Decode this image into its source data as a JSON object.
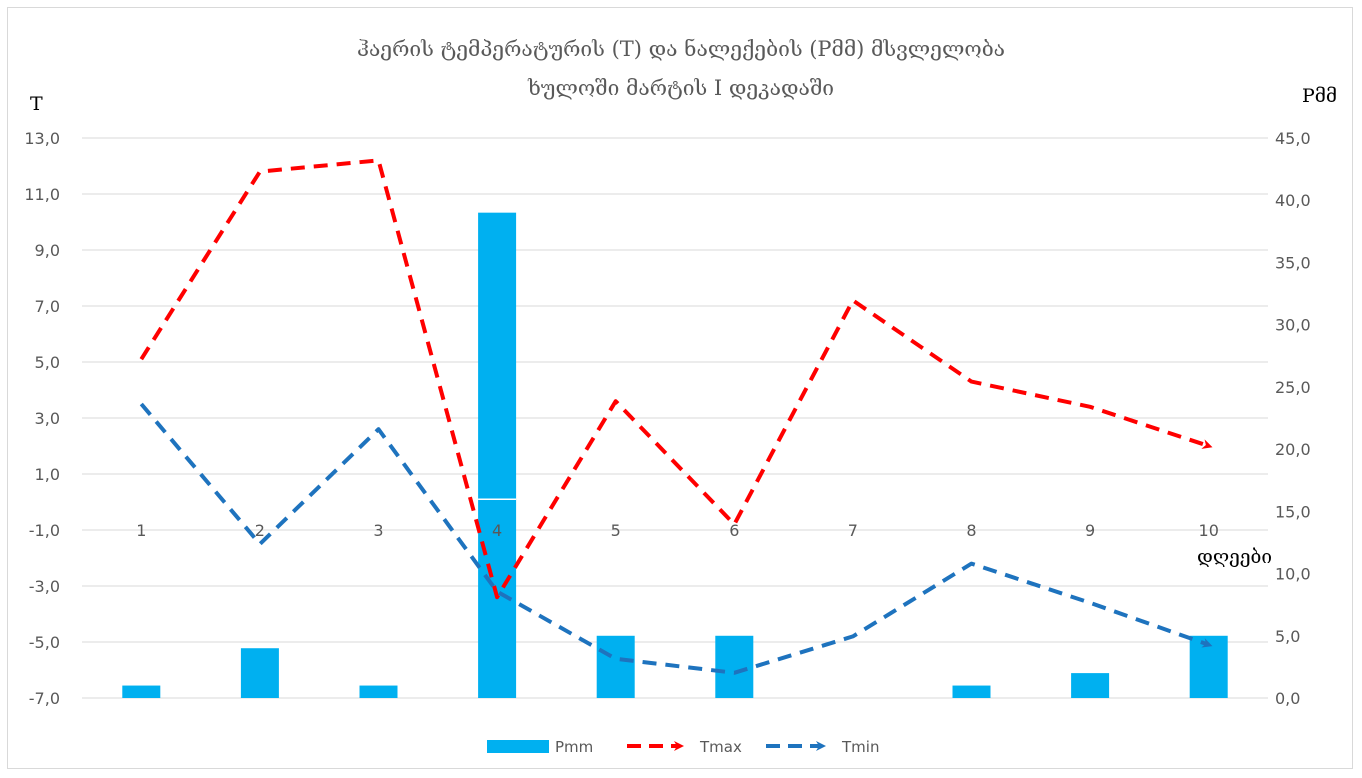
{
  "chart_data": {
    "type": "bar+line",
    "title": [
      "ჰაერის ტემპერატურის (T) და ნალექების (Pმმ) მსვლელობა",
      "ხულოში მარტის I დეკადაში"
    ],
    "y_left_label": "T",
    "y_right_label": "Pმმ",
    "x_label": "დღეები",
    "categories": [
      "1",
      "2",
      "3",
      "4",
      "5",
      "6",
      "7",
      "8",
      "9",
      "10"
    ],
    "y_left": {
      "min": -7,
      "max": 13,
      "step": 2,
      "ticks": [
        "13,0",
        "11,0",
        "9,0",
        "7,0",
        "5,0",
        "3,0",
        "1,0",
        "-1,0",
        "-3,0",
        "-5,0",
        "-7,0"
      ]
    },
    "y_right": {
      "min": 0,
      "max": 45,
      "step": 5,
      "ticks": [
        "45,0",
        "40,0",
        "35,0",
        "30,0",
        "25,0",
        "20,0",
        "15,0",
        "10,0",
        "5,0",
        "0,0"
      ]
    },
    "series": [
      {
        "name": "Pmm",
        "kind": "bar",
        "axis": "right",
        "color": "#00b0f0",
        "values": [
          1.0,
          4.0,
          1.0,
          39.0,
          5.0,
          5.0,
          0.0,
          1.0,
          2.0,
          5.0
        ]
      },
      {
        "name": "Tmax",
        "kind": "line-dashed",
        "axis": "left",
        "color": "#ff0000",
        "values": [
          5.1,
          11.8,
          12.2,
          -3.4,
          3.6,
          -0.8,
          7.2,
          4.3,
          3.4,
          2.0
        ]
      },
      {
        "name": "Tmin",
        "kind": "line-dashed",
        "axis": "left",
        "color": "#1e73be",
        "values": [
          3.5,
          -1.5,
          2.6,
          -3.2,
          -5.6,
          -6.1,
          -4.8,
          -2.2,
          -3.6,
          -5.1
        ]
      }
    ],
    "legend_position": "bottom",
    "grid": true
  }
}
